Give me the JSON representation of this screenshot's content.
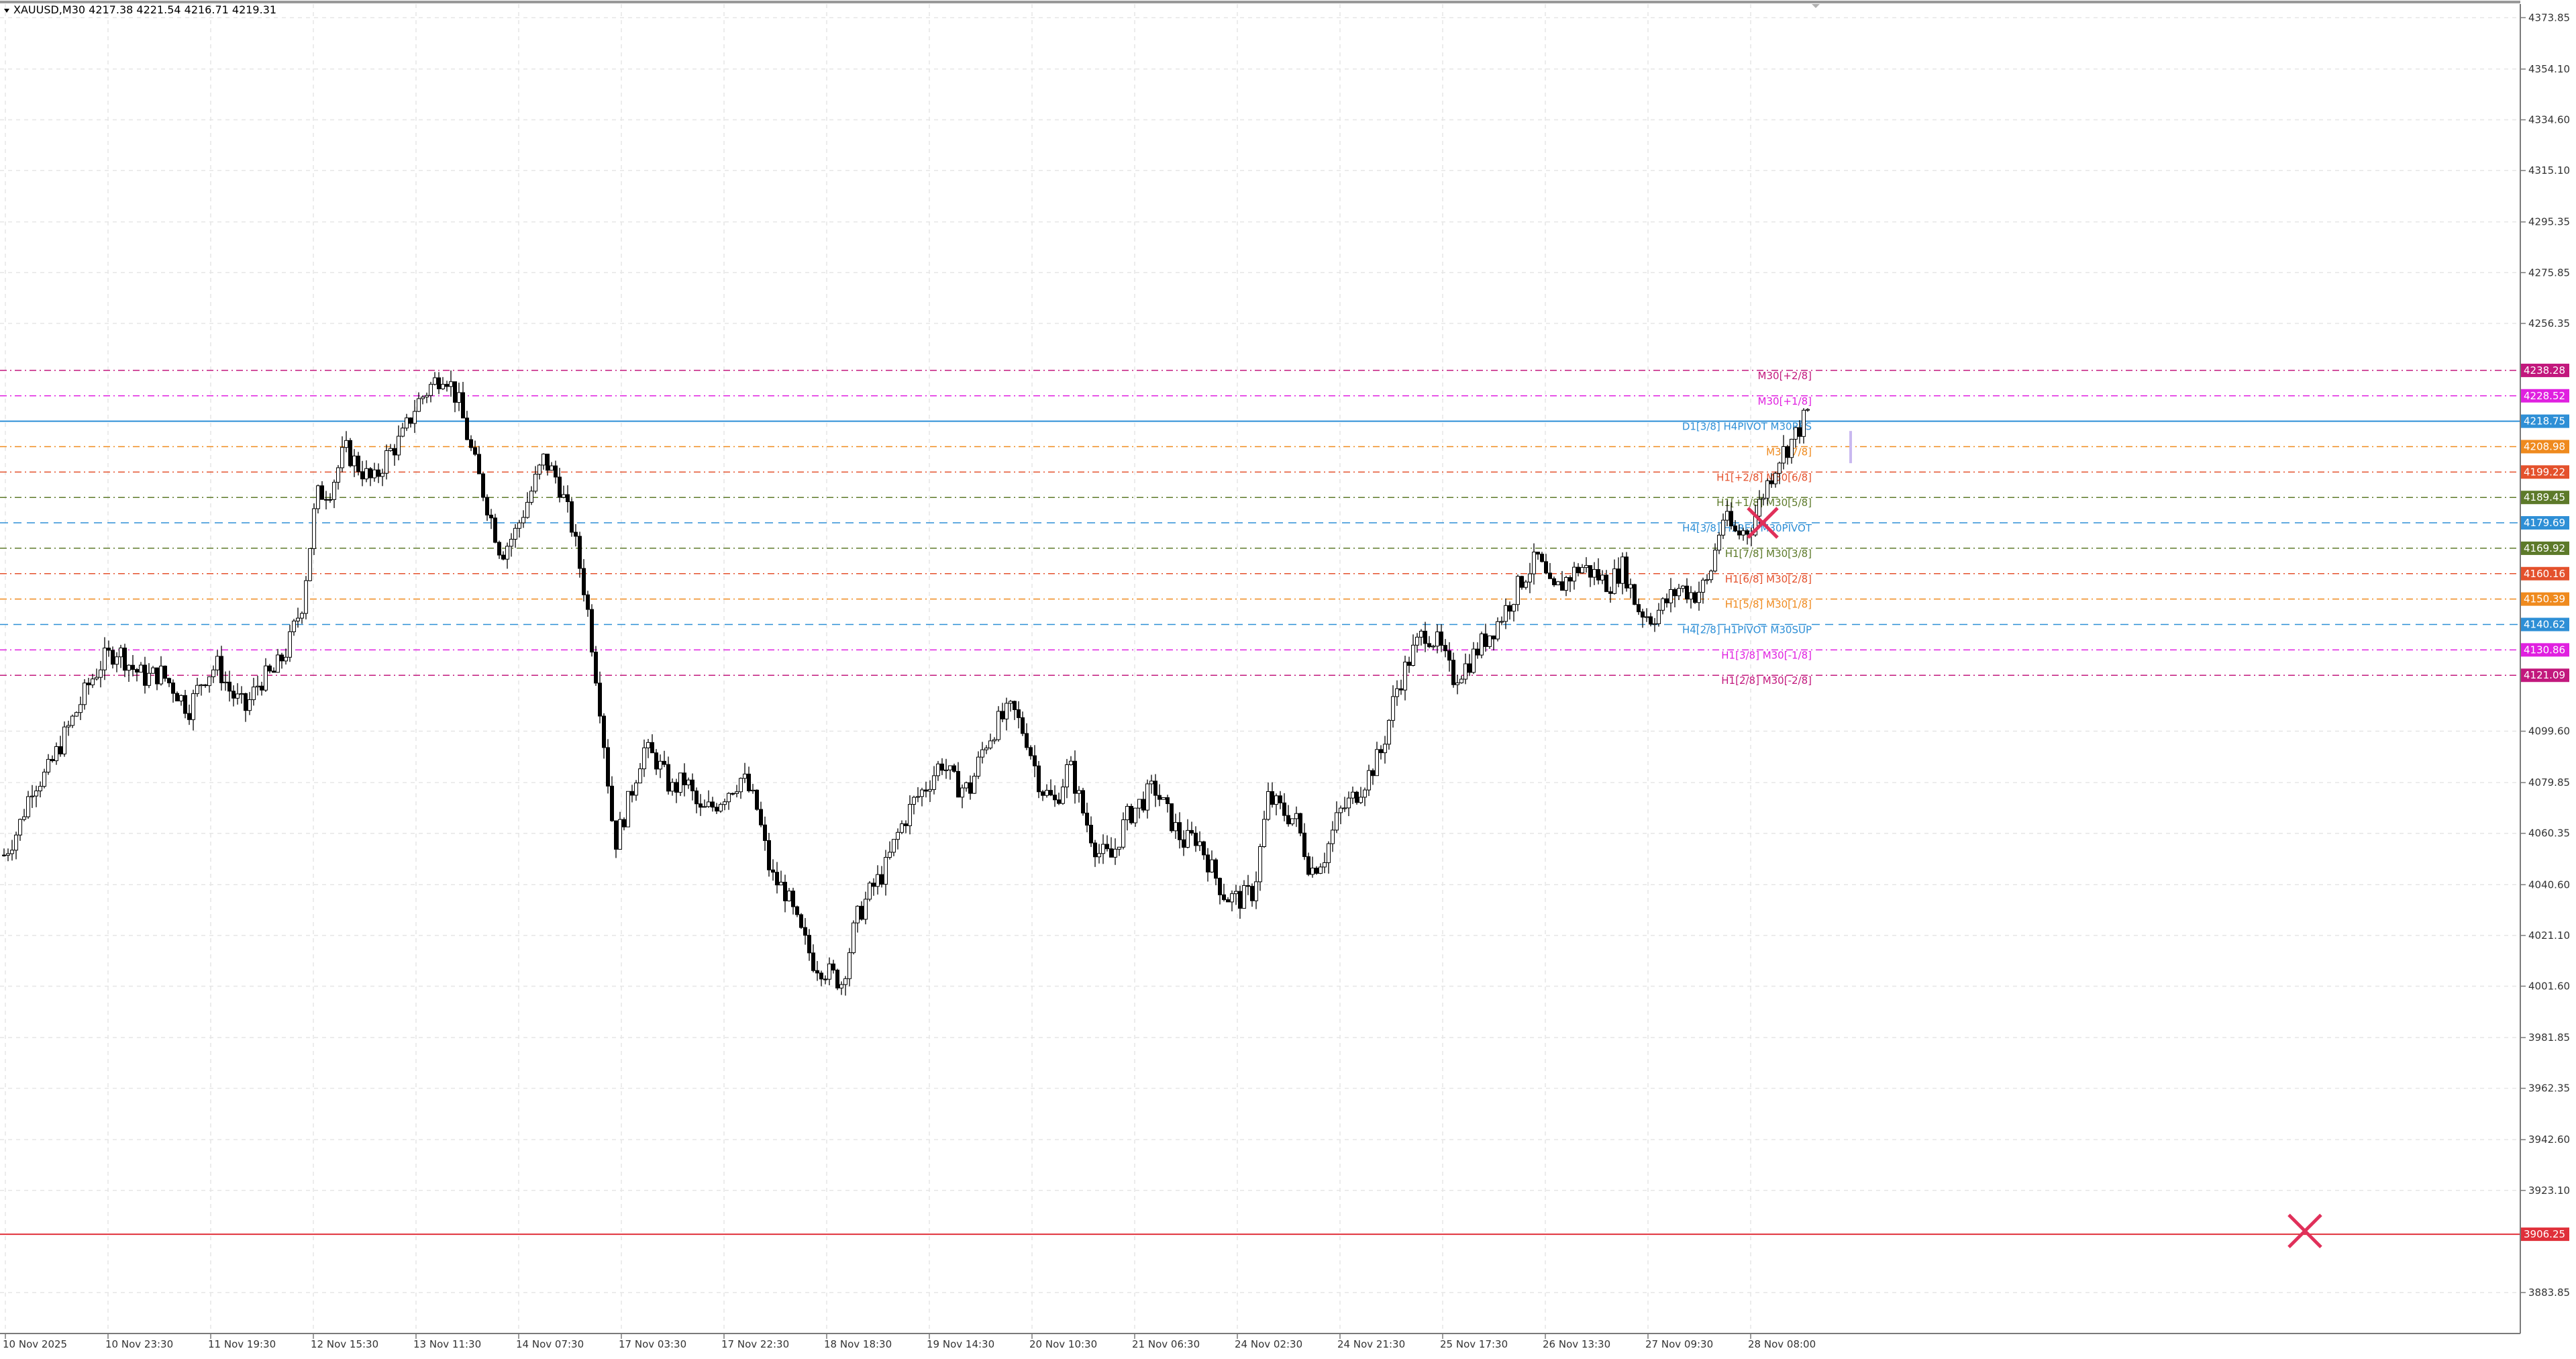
{
  "header": {
    "symbol_info": "XAUUSD,M30  4217.38 4221.54 4216.71 4219.31"
  },
  "colors": {
    "candle": "#000000",
    "grid": "#e6e6e6",
    "axis": "#7a7a7a",
    "bottom_line": "#e0303a",
    "marker": "#e0305a"
  },
  "chart_data": {
    "type": "candlestick",
    "symbol": "XAUUSD",
    "timeframe": "M30",
    "ylim": [
      3868.1,
      4379.1
    ],
    "grid": true,
    "y_ticks": [
      4373.85,
      4354.1,
      4334.6,
      4315.1,
      4295.35,
      4275.85,
      4256.35,
      4099.6,
      4079.85,
      4060.35,
      4040.6,
      4021.1,
      4001.6,
      3981.85,
      3962.35,
      3942.6,
      3923.1,
      3883.85
    ],
    "x_ticks": [
      "10 Nov 2025",
      "10 Nov 23:30",
      "11 Nov 19:30",
      "12 Nov 15:30",
      "13 Nov 11:30",
      "14 Nov 07:30",
      "17 Nov 03:30",
      "17 Nov 22:30",
      "18 Nov 18:30",
      "19 Nov 14:30",
      "20 Nov 10:30",
      "21 Nov 06:30",
      "24 Nov 02:30",
      "24 Nov 21:30",
      "25 Nov 17:30",
      "26 Nov 13:30",
      "27 Nov 09:30",
      "28 Nov 08:00"
    ],
    "price_path": [
      4052,
      4062,
      4079,
      4083,
      4095,
      4106,
      4118,
      4127,
      4131,
      4124,
      4120,
      4122,
      4116,
      4108,
      4120,
      4125,
      4114,
      4108,
      4119,
      4122,
      4132,
      4149,
      4190,
      4193,
      4208,
      4201,
      4195,
      4206,
      4212,
      4225,
      4232,
      4238,
      4226,
      4205,
      4187,
      4168,
      4176,
      4190,
      4204,
      4196,
      4178,
      4150,
      4108,
      4056,
      4073,
      4093,
      4088,
      4077,
      4081,
      4068,
      4071,
      4077,
      4082,
      4070,
      4044,
      4038,
      4023,
      4011,
      4007,
      4003,
      4027,
      4038,
      4046,
      4061,
      4072,
      4079,
      4088,
      4079,
      4077,
      4094,
      4103,
      4108,
      4097,
      4078,
      4072,
      4087,
      4068,
      4053,
      4051,
      4066,
      4072,
      4078,
      4067,
      4057,
      4059,
      4047,
      4036,
      4035,
      4038,
      4074,
      4069,
      4065,
      4046,
      4052,
      4068,
      4074,
      4082,
      4092,
      4115,
      4128,
      4138,
      4133,
      4120,
      4125,
      4133,
      4140,
      4149,
      4159,
      4166,
      4152,
      4158,
      4163,
      4160,
      4156,
      4163,
      4147,
      4143,
      4149,
      4155,
      4152,
      4157,
      4182,
      4175,
      4178,
      4193,
      4205,
      4212,
      4222
    ],
    "levels": [
      {
        "price": 4238.28,
        "price_label": "4238.28",
        "label": "M30[+2/8]",
        "color": "#c2187d",
        "style": "dashdot"
      },
      {
        "price": 4228.52,
        "price_label": "4228.52",
        "label": "M30[+1/8]",
        "color": "#e020e0",
        "style": "dashdot"
      },
      {
        "price": 4218.75,
        "price_label": "4218.75",
        "label": "D1[3/8] H4PIVOT M30RES",
        "color": "#2e8fd6",
        "style": "solid"
      },
      {
        "price": 4208.98,
        "price_label": "4208.98",
        "label": "M30[7/8]",
        "color": "#ef8a1e",
        "style": "dashdot"
      },
      {
        "price": 4199.22,
        "price_label": "4199.22",
        "label": "H1[+2/8] M30[6/8]",
        "color": "#e4512c",
        "style": "dashdot"
      },
      {
        "price": 4189.45,
        "price_label": "4189.45",
        "label": "H1[+1/8] M30[5/8]",
        "color": "#5d7a2a",
        "style": "dashdot"
      },
      {
        "price": 4179.69,
        "price_label": "4179.69",
        "label": "H4[3/8] H1RES M30PIVOT",
        "color": "#2e8fd6",
        "style": "dashed"
      },
      {
        "price": 4169.92,
        "price_label": "4169.92",
        "label": "H1[7/8] M30[3/8]",
        "color": "#5d7a2a",
        "style": "dashdot"
      },
      {
        "price": 4160.16,
        "price_label": "4160.16",
        "label": "H1[6/8] M30[2/8]",
        "color": "#e4512c",
        "style": "dashdot"
      },
      {
        "price": 4150.39,
        "price_label": "4150.39",
        "label": "H1[5/8] M30[1/8]",
        "color": "#ef8a1e",
        "style": "dashdot"
      },
      {
        "price": 4140.62,
        "price_label": "4140.62",
        "label": "H4[2/8] H1PIVOT M30SUP",
        "color": "#2e8fd6",
        "style": "dashed"
      },
      {
        "price": 4130.86,
        "price_label": "4130.86",
        "label": "H1[3/8] M30[-1/8]",
        "color": "#e020e0",
        "style": "dashdot"
      },
      {
        "price": 4121.09,
        "price_label": "4121.09",
        "label": "H1[2/8] M30[-2/8]",
        "color": "#c2187d",
        "style": "dashdot"
      },
      {
        "price": 3906.25,
        "price_label": "3906.25",
        "label": "",
        "color": "#e0303a",
        "style": "solid"
      }
    ]
  }
}
